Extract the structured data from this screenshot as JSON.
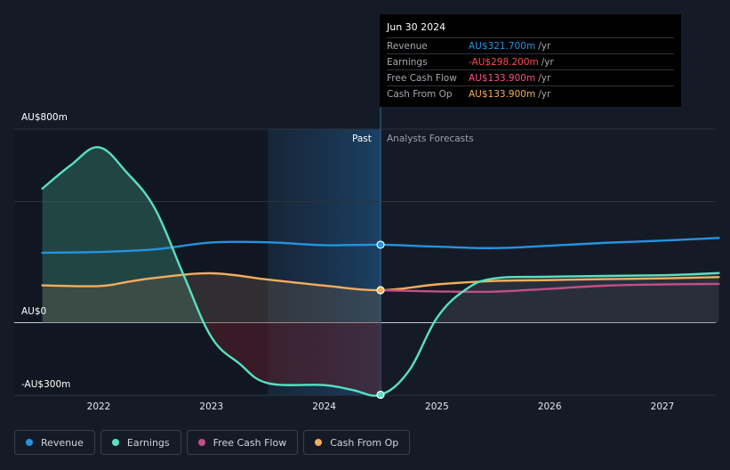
{
  "tooltip": {
    "date": "Jun 30 2024",
    "rows": [
      {
        "name": "Revenue",
        "value": "AU$321.700m",
        "unit": "/yr",
        "color": "#2394df"
      },
      {
        "name": "Earnings",
        "value": "-AU$298.200m",
        "unit": "/yr",
        "color": "#ff4a4a"
      },
      {
        "name": "Free Cash Flow",
        "value": "AU$133.900m",
        "unit": "/yr",
        "color": "#ff4d8d"
      },
      {
        "name": "Cash From Op",
        "value": "AU$133.900m",
        "unit": "/yr",
        "color": "#f2ad5d"
      }
    ]
  },
  "region": {
    "past": "Past",
    "forecast": "Analysts Forecasts"
  },
  "legend": [
    {
      "name": "Revenue",
      "color": "#2394df"
    },
    {
      "name": "Earnings",
      "color": "#58e1c1"
    },
    {
      "name": "Free Cash Flow",
      "color": "#c44e87"
    },
    {
      "name": "Cash From Op",
      "color": "#f2ad5d"
    }
  ],
  "chart_data": {
    "type": "line",
    "x_ticks": [
      "2022",
      "2023",
      "2024",
      "2025",
      "2026",
      "2027"
    ],
    "y_tick_labels": [
      "AU$800m",
      "AU$0",
      "-AU$300m"
    ],
    "ylim": [
      -300,
      800
    ],
    "xlim": [
      2021.5,
      2027.5
    ],
    "past_region": [
      2023.5,
      2024.5
    ],
    "highlight_x": 2024.5,
    "grid": true,
    "legend_position": "bottom-left",
    "series": [
      {
        "name": "Revenue",
        "color": "#2394df",
        "points": [
          [
            2021.5,
            289
          ],
          [
            2022.0,
            292
          ],
          [
            2022.5,
            303
          ],
          [
            2023.0,
            331
          ],
          [
            2023.5,
            332
          ],
          [
            2024.0,
            320
          ],
          [
            2024.5,
            322
          ],
          [
            2025.0,
            314
          ],
          [
            2025.5,
            308
          ],
          [
            2026.0,
            318
          ],
          [
            2026.5,
            330
          ],
          [
            2027.0,
            339
          ],
          [
            2027.5,
            350
          ]
        ]
      },
      {
        "name": "Earnings",
        "color": "#58e1c1",
        "points": [
          [
            2021.5,
            554
          ],
          [
            2021.75,
            650
          ],
          [
            2022.0,
            725
          ],
          [
            2022.25,
            620
          ],
          [
            2022.5,
            470
          ],
          [
            2022.75,
            200
          ],
          [
            2023.0,
            -60
          ],
          [
            2023.25,
            -170
          ],
          [
            2023.5,
            -250
          ],
          [
            2024.0,
            -258
          ],
          [
            2024.25,
            -278
          ],
          [
            2024.5,
            -298
          ],
          [
            2024.75,
            -200
          ],
          [
            2025.0,
            20
          ],
          [
            2025.25,
            135
          ],
          [
            2025.5,
            182
          ],
          [
            2026.0,
            190
          ],
          [
            2027.0,
            196
          ],
          [
            2027.5,
            205
          ]
        ]
      },
      {
        "name": "Free Cash Flow",
        "color": "#c44e87",
        "points": [
          [
            2024.5,
            134
          ],
          [
            2025.0,
            129
          ],
          [
            2025.5,
            128
          ],
          [
            2026.0,
            140
          ],
          [
            2026.5,
            153
          ],
          [
            2027.0,
            158
          ],
          [
            2027.5,
            160
          ]
        ]
      },
      {
        "name": "Cash From Op",
        "color": "#f2ad5d",
        "points": [
          [
            2021.5,
            154
          ],
          [
            2022.0,
            151
          ],
          [
            2022.25,
            168
          ],
          [
            2022.5,
            185
          ],
          [
            2023.0,
            204
          ],
          [
            2023.5,
            178
          ],
          [
            2024.0,
            153
          ],
          [
            2024.5,
            134
          ],
          [
            2025.0,
            158
          ],
          [
            2025.5,
            172
          ],
          [
            2026.0,
            176
          ],
          [
            2026.5,
            180
          ],
          [
            2027.0,
            183
          ],
          [
            2027.5,
            188
          ]
        ]
      }
    ]
  }
}
